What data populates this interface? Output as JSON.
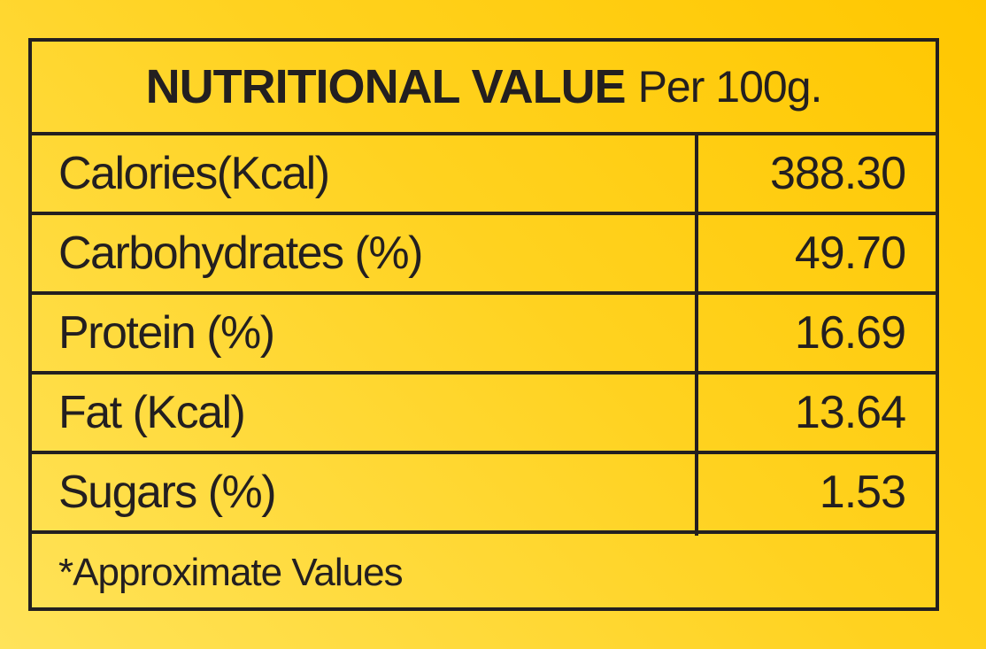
{
  "title": {
    "main": "NUTRITIONAL VALUE",
    "sub": "Per 100g."
  },
  "rows": [
    {
      "label": "Calories(Kcal)",
      "value": "388.30"
    },
    {
      "label": "Carbohydrates (%)",
      "value": "49.70"
    },
    {
      "label": "Protein (%)",
      "value": "16.69"
    },
    {
      "label": "Fat (Kcal)",
      "value": "13.64"
    },
    {
      "label": "Sugars (%)",
      "value": "1.53"
    }
  ],
  "footnote": "*Approximate Values",
  "colors": {
    "background": "#ffd21f",
    "ink": "#231f20"
  }
}
